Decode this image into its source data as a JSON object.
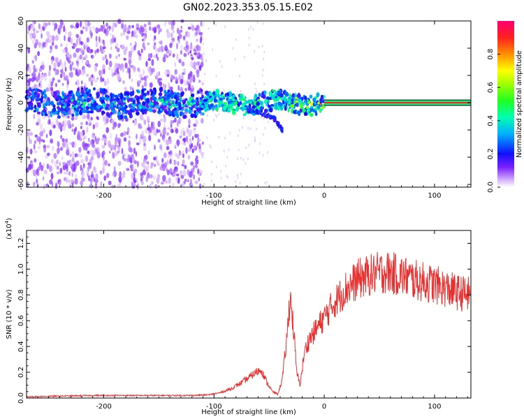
{
  "title": "GN02.2023.353.05.15.E02",
  "chart_data": [
    {
      "type": "heatmap",
      "xlabel": "Height of straight line (km)",
      "ylabel": "Frequency (Hz)",
      "xlim": [
        -270,
        133
      ],
      "ylim": [
        -62,
        60
      ],
      "xticks": [
        -200,
        -100,
        0,
        100
      ],
      "xtick_labels": [
        "-200",
        "-100",
        "0",
        "100"
      ],
      "yticks": [
        -60,
        -40,
        -20,
        0,
        20,
        40,
        60
      ],
      "ytick_labels": [
        "-60",
        "-40",
        "-20",
        "0",
        "20",
        "40",
        "60"
      ],
      "colorbar": {
        "label": "Normalized spectral amplitude",
        "range": [
          0,
          1
        ],
        "ticks": [
          0,
          0.2,
          0.4,
          0.6,
          0.8
        ],
        "tick_labels": [
          "0.0",
          "0.2",
          "0.4",
          "0.6",
          "0.8"
        ]
      },
      "features": {
        "band_center_hz": 0,
        "band_halfwidth_hz": 2,
        "band_start_km": 0,
        "band_amplitude": 0.9,
        "noise_region_km": [
          -270,
          -110
        ],
        "branch": [
          [
            -70,
            -5
          ],
          [
            -55,
            -8
          ],
          [
            -45,
            -12
          ],
          [
            -38,
            -20
          ]
        ]
      }
    },
    {
      "type": "line",
      "xlabel": "Height of straight line (km)",
      "ylabel": "SNR (10 * v/v)",
      "multiplier_label": "(x10",
      "multiplier_exponent": "4",
      "xlim": [
        -270,
        133
      ],
      "ylim": [
        0,
        1.3
      ],
      "xticks": [
        -200,
        -100,
        0,
        100
      ],
      "xtick_labels": [
        "-200",
        "-100",
        "0",
        "100"
      ],
      "yticks": [
        0,
        0.2,
        0.4,
        0.6,
        0.8,
        1.0,
        1.2
      ],
      "ytick_labels": [
        "0.0",
        "0.2",
        "0.4",
        "0.6",
        "0.8",
        "1.0",
        "1.2"
      ],
      "color": "#e83030",
      "series": [
        {
          "x": [
            -270,
            -240,
            -210,
            -180,
            -150,
            -120,
            -105,
            -95,
            -85,
            -75,
            -68,
            -62,
            -57,
            -52,
            -47,
            -42,
            -38,
            -34,
            -31,
            -28,
            -25,
            -22,
            -18,
            -14,
            -10,
            -6,
            -2,
            2,
            6,
            10,
            15,
            20,
            25,
            30,
            40,
            50,
            55,
            60,
            70,
            80,
            90,
            100,
            110,
            120,
            133
          ],
          "y": [
            0.01,
            0.015,
            0.02,
            0.02,
            0.02,
            0.02,
            0.025,
            0.04,
            0.07,
            0.12,
            0.16,
            0.2,
            0.22,
            0.12,
            0.05,
            0.03,
            0.15,
            0.45,
            0.8,
            0.55,
            0.2,
            0.1,
            0.35,
            0.45,
            0.5,
            0.55,
            0.6,
            0.65,
            0.7,
            0.75,
            0.8,
            0.85,
            0.88,
            0.92,
            0.95,
            0.97,
            0.98,
            0.97,
            0.95,
            0.92,
            0.9,
            0.88,
            0.85,
            0.82,
            0.8
          ]
        }
      ]
    }
  ]
}
